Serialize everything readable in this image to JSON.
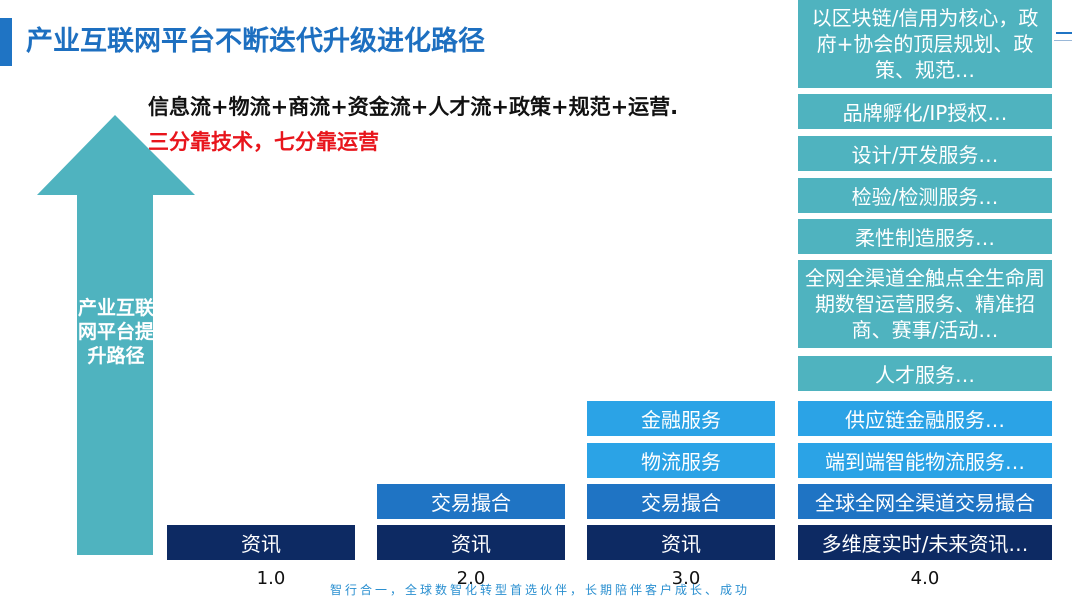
{
  "header": {
    "title": "产业互联网平台不断迭代升级进化路径"
  },
  "headline": {
    "line1": "信息流+物流+商流+资金流+人才流+政策+规范+运营.",
    "line2": "三分靠技术，七分靠运营"
  },
  "arrow": {
    "label": "产业互联网平台提升路径"
  },
  "stages": [
    {
      "version": "1.0",
      "boxes": [
        "资讯"
      ]
    },
    {
      "version": "2.0",
      "boxes": [
        "交易撮合",
        "资讯"
      ]
    },
    {
      "version": "3.0",
      "boxes": [
        "金融服务",
        "物流服务",
        "交易撮合",
        "资讯"
      ]
    },
    {
      "version": "4.0",
      "boxes": [
        "以区块链/信用为核心，政府+协会的顶层规划、政策、规范…",
        "品牌孵化/IP授权…",
        "设计/开发服务…",
        "检验/检测服务…",
        "柔性制造服务…",
        "全网全渠道全触点全生命周期数智运营服务、精准招商、赛事/活动…",
        "人才服务…",
        "供应链金融服务…",
        "端到端智能物流服务…",
        "全球全网全渠道交易撮合",
        "多维度实时/未来资讯…"
      ]
    }
  ],
  "footer": {
    "text": "智行合一，全球数智化转型首选伙伴，长期陪伴客户成长、成功"
  },
  "colors": {
    "navy": "#0d2a63",
    "mid_blue": "#1f74c4",
    "light_blue": "#2ba3e6",
    "teal": "#4fb3bf",
    "red": "#e8151c",
    "title_blue": "#1d6fc0"
  }
}
